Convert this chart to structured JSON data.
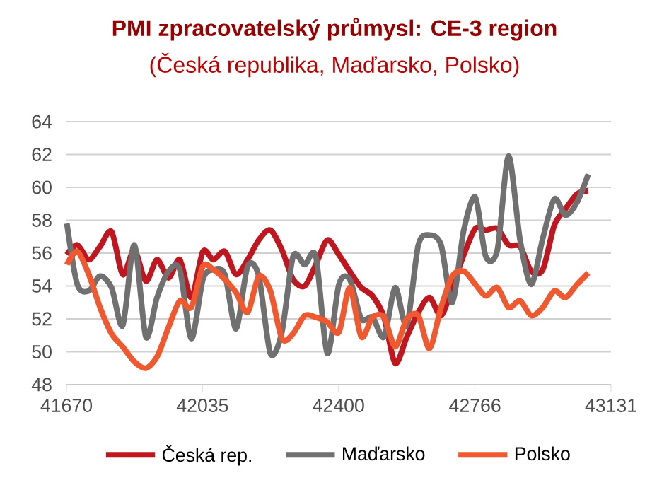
{
  "chart_data": {
    "type": "line",
    "title": "PMI zpracovatelský průmysl: CE-3 region",
    "subtitle": "(Česká republika, Maďarsko, Polsko)",
    "x": [
      41671,
      41699,
      41730,
      41760,
      41791,
      41821,
      41852,
      41883,
      41913,
      41944,
      41974,
      42005,
      42036,
      42064,
      42095,
      42125,
      42156,
      42186,
      42217,
      42248,
      42278,
      42309,
      42339,
      42370,
      42401,
      42430,
      42461,
      42491,
      42522,
      42552,
      42583,
      42614,
      42644,
      42675,
      42705,
      42736,
      42767,
      42795,
      42826,
      42856,
      42887,
      42917,
      42948,
      42979,
      43009,
      43040,
      43070
    ],
    "series": [
      {
        "name": "Česká rep.",
        "color": "#c0161f",
        "values": [
          55.9,
          56.5,
          55.6,
          56.4,
          57.3,
          54.7,
          56.2,
          54.3,
          55.6,
          54.5,
          55.6,
          53.3,
          56.1,
          55.6,
          56.1,
          54.7,
          55.6,
          56.8,
          57.4,
          56.2,
          54.4,
          54.0,
          55.3,
          56.8,
          55.9,
          54.9,
          53.9,
          53.4,
          52.1,
          49.3,
          50.9,
          52.4,
          53.3,
          52.2,
          53.9,
          55.9,
          57.5,
          57.4,
          57.5,
          56.5,
          56.4,
          54.9,
          55.0,
          57.7,
          58.7,
          59.6,
          59.8
        ]
      },
      {
        "name": "Maďarsko",
        "color": "#707070",
        "values": [
          57.8,
          54.1,
          53.7,
          54.6,
          53.9,
          51.6,
          56.5,
          50.9,
          53.3,
          54.9,
          55.0,
          50.8,
          54.4,
          55.0,
          54.7,
          51.4,
          55.2,
          54.6,
          49.9,
          51.2,
          55.8,
          55.3,
          55.8,
          49.9,
          54.1,
          54.4,
          52.0,
          52.1,
          50.9,
          53.9,
          51.6,
          56.5,
          57.1,
          56.5,
          53.0,
          57.4,
          59.4,
          55.8,
          56.2,
          61.9,
          56.8,
          54.1,
          56.9,
          59.3,
          58.3,
          59.1,
          60.8
        ]
      },
      {
        "name": "Polsko",
        "color": "#f0582f",
        "values": [
          55.3,
          56.1,
          54.7,
          52.7,
          51.1,
          50.3,
          49.4,
          49.0,
          49.7,
          51.5,
          53.1,
          52.7,
          55.2,
          55.0,
          54.4,
          53.6,
          52.4,
          54.6,
          53.7,
          50.8,
          51.1,
          52.2,
          52.1,
          51.8,
          51.2,
          53.9,
          50.9,
          52.1,
          52.1,
          50.3,
          52.0,
          52.2,
          50.2,
          52.7,
          54.6,
          54.9,
          54.1,
          53.4,
          53.9,
          52.7,
          53.1,
          52.2,
          52.7,
          53.7,
          53.3,
          54.1,
          54.8
        ]
      }
    ],
    "xlim": [
      41670,
      43131
    ],
    "xticks": [
      41670,
      42035,
      42400,
      42766,
      43131
    ],
    "ylim": [
      48,
      64
    ],
    "yticks": [
      48,
      50,
      52,
      54,
      56,
      58,
      60,
      62,
      64
    ],
    "grid": "y",
    "legend": "bottom"
  }
}
